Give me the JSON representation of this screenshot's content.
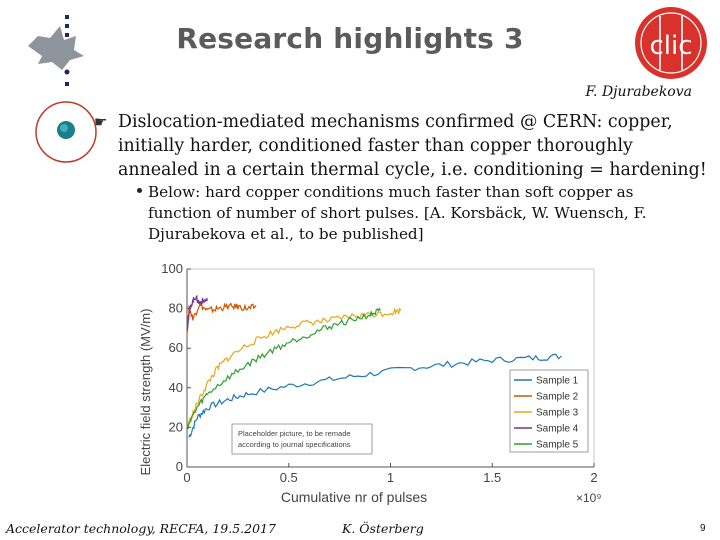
{
  "slide": {
    "title": "Research highlights 3",
    "author": "F. Djurabekova",
    "bullet_main": "Dislocation-mediated mechanisms confirmed @ CERN: copper, initially harder, conditioned faster than copper thoroughly annealed in a certain thermal cycle, i.e. conditioning = hardening!",
    "bullet_sub": "Below: hard copper conditions much faster than soft copper as function of number of short pulses. [A. Korsbäck, W. Wuensch, F. Djurabekova et al., to be published]",
    "footer_left": "Accelerator technology, RECFA, 19.5.2017",
    "footer_center": "K. Österberg",
    "page_number": "9",
    "logo_right_text": "clic"
  },
  "icons": {
    "bullet_main": "hand-pointer-icon",
    "bullet_sub": "dot-icon",
    "logo_left": "university-helmet-logo-icon",
    "logo_right": "clic-logo-icon",
    "decoration": "orbit-icon"
  },
  "chart_data": {
    "type": "line",
    "xlabel": "Cumulative nr of pulses",
    "ylabel": "Electric field strength (MV/m)",
    "x_multiplier": "×10⁹",
    "xlim": [
      0,
      2
    ],
    "ylim": [
      0,
      100
    ],
    "xticks": [
      "0",
      "0.5",
      "1",
      "1.5",
      "2"
    ],
    "yticks": [
      "0",
      "20",
      "40",
      "60",
      "80",
      "100"
    ],
    "legend_position": "bottom-right",
    "annotation": [
      "Placeholder picture, to be remade",
      "according to journal specifications"
    ],
    "series": [
      {
        "name": "Sample 1",
        "color": "#1f77b4",
        "points": [
          [
            0.01,
            15
          ],
          [
            0.05,
            25
          ],
          [
            0.1,
            30
          ],
          [
            0.2,
            34
          ],
          [
            0.3,
            37
          ],
          [
            0.5,
            41
          ],
          [
            0.7,
            44
          ],
          [
            0.9,
            47
          ],
          [
            1.1,
            50
          ],
          [
            1.3,
            52
          ],
          [
            1.5,
            54
          ],
          [
            1.7,
            55
          ],
          [
            1.84,
            56
          ]
        ]
      },
      {
        "name": "Sample 2",
        "color": "#d35400",
        "points": [
          [
            0.0,
            68
          ],
          [
            0.01,
            80
          ],
          [
            0.03,
            75
          ],
          [
            0.06,
            82
          ],
          [
            0.1,
            79
          ],
          [
            0.15,
            80
          ],
          [
            0.2,
            81
          ],
          [
            0.25,
            81
          ],
          [
            0.3,
            80
          ],
          [
            0.34,
            81
          ]
        ]
      },
      {
        "name": "Sample 3",
        "color": "#e6a817",
        "points": [
          [
            0.0,
            20
          ],
          [
            0.05,
            32
          ],
          [
            0.1,
            42
          ],
          [
            0.15,
            50
          ],
          [
            0.2,
            55
          ],
          [
            0.3,
            62
          ],
          [
            0.4,
            67
          ],
          [
            0.5,
            71
          ],
          [
            0.6,
            73
          ],
          [
            0.7,
            74
          ],
          [
            0.8,
            76
          ],
          [
            0.9,
            77
          ],
          [
            1.0,
            78
          ],
          [
            1.05,
            79
          ]
        ]
      },
      {
        "name": "Sample 4",
        "color": "#7b3294",
        "points": [
          [
            0.0,
            70
          ],
          [
            0.02,
            82
          ],
          [
            0.04,
            86
          ],
          [
            0.06,
            83
          ],
          [
            0.08,
            84
          ],
          [
            0.1,
            84
          ]
        ]
      },
      {
        "name": "Sample 5",
        "color": "#2ca02c",
        "points": [
          [
            0.0,
            20
          ],
          [
            0.05,
            30
          ],
          [
            0.1,
            37
          ],
          [
            0.2,
            45
          ],
          [
            0.3,
            52
          ],
          [
            0.4,
            58
          ],
          [
            0.5,
            63
          ],
          [
            0.6,
            67
          ],
          [
            0.7,
            71
          ],
          [
            0.8,
            74
          ],
          [
            0.9,
            77
          ],
          [
            0.95,
            79
          ]
        ]
      }
    ]
  }
}
